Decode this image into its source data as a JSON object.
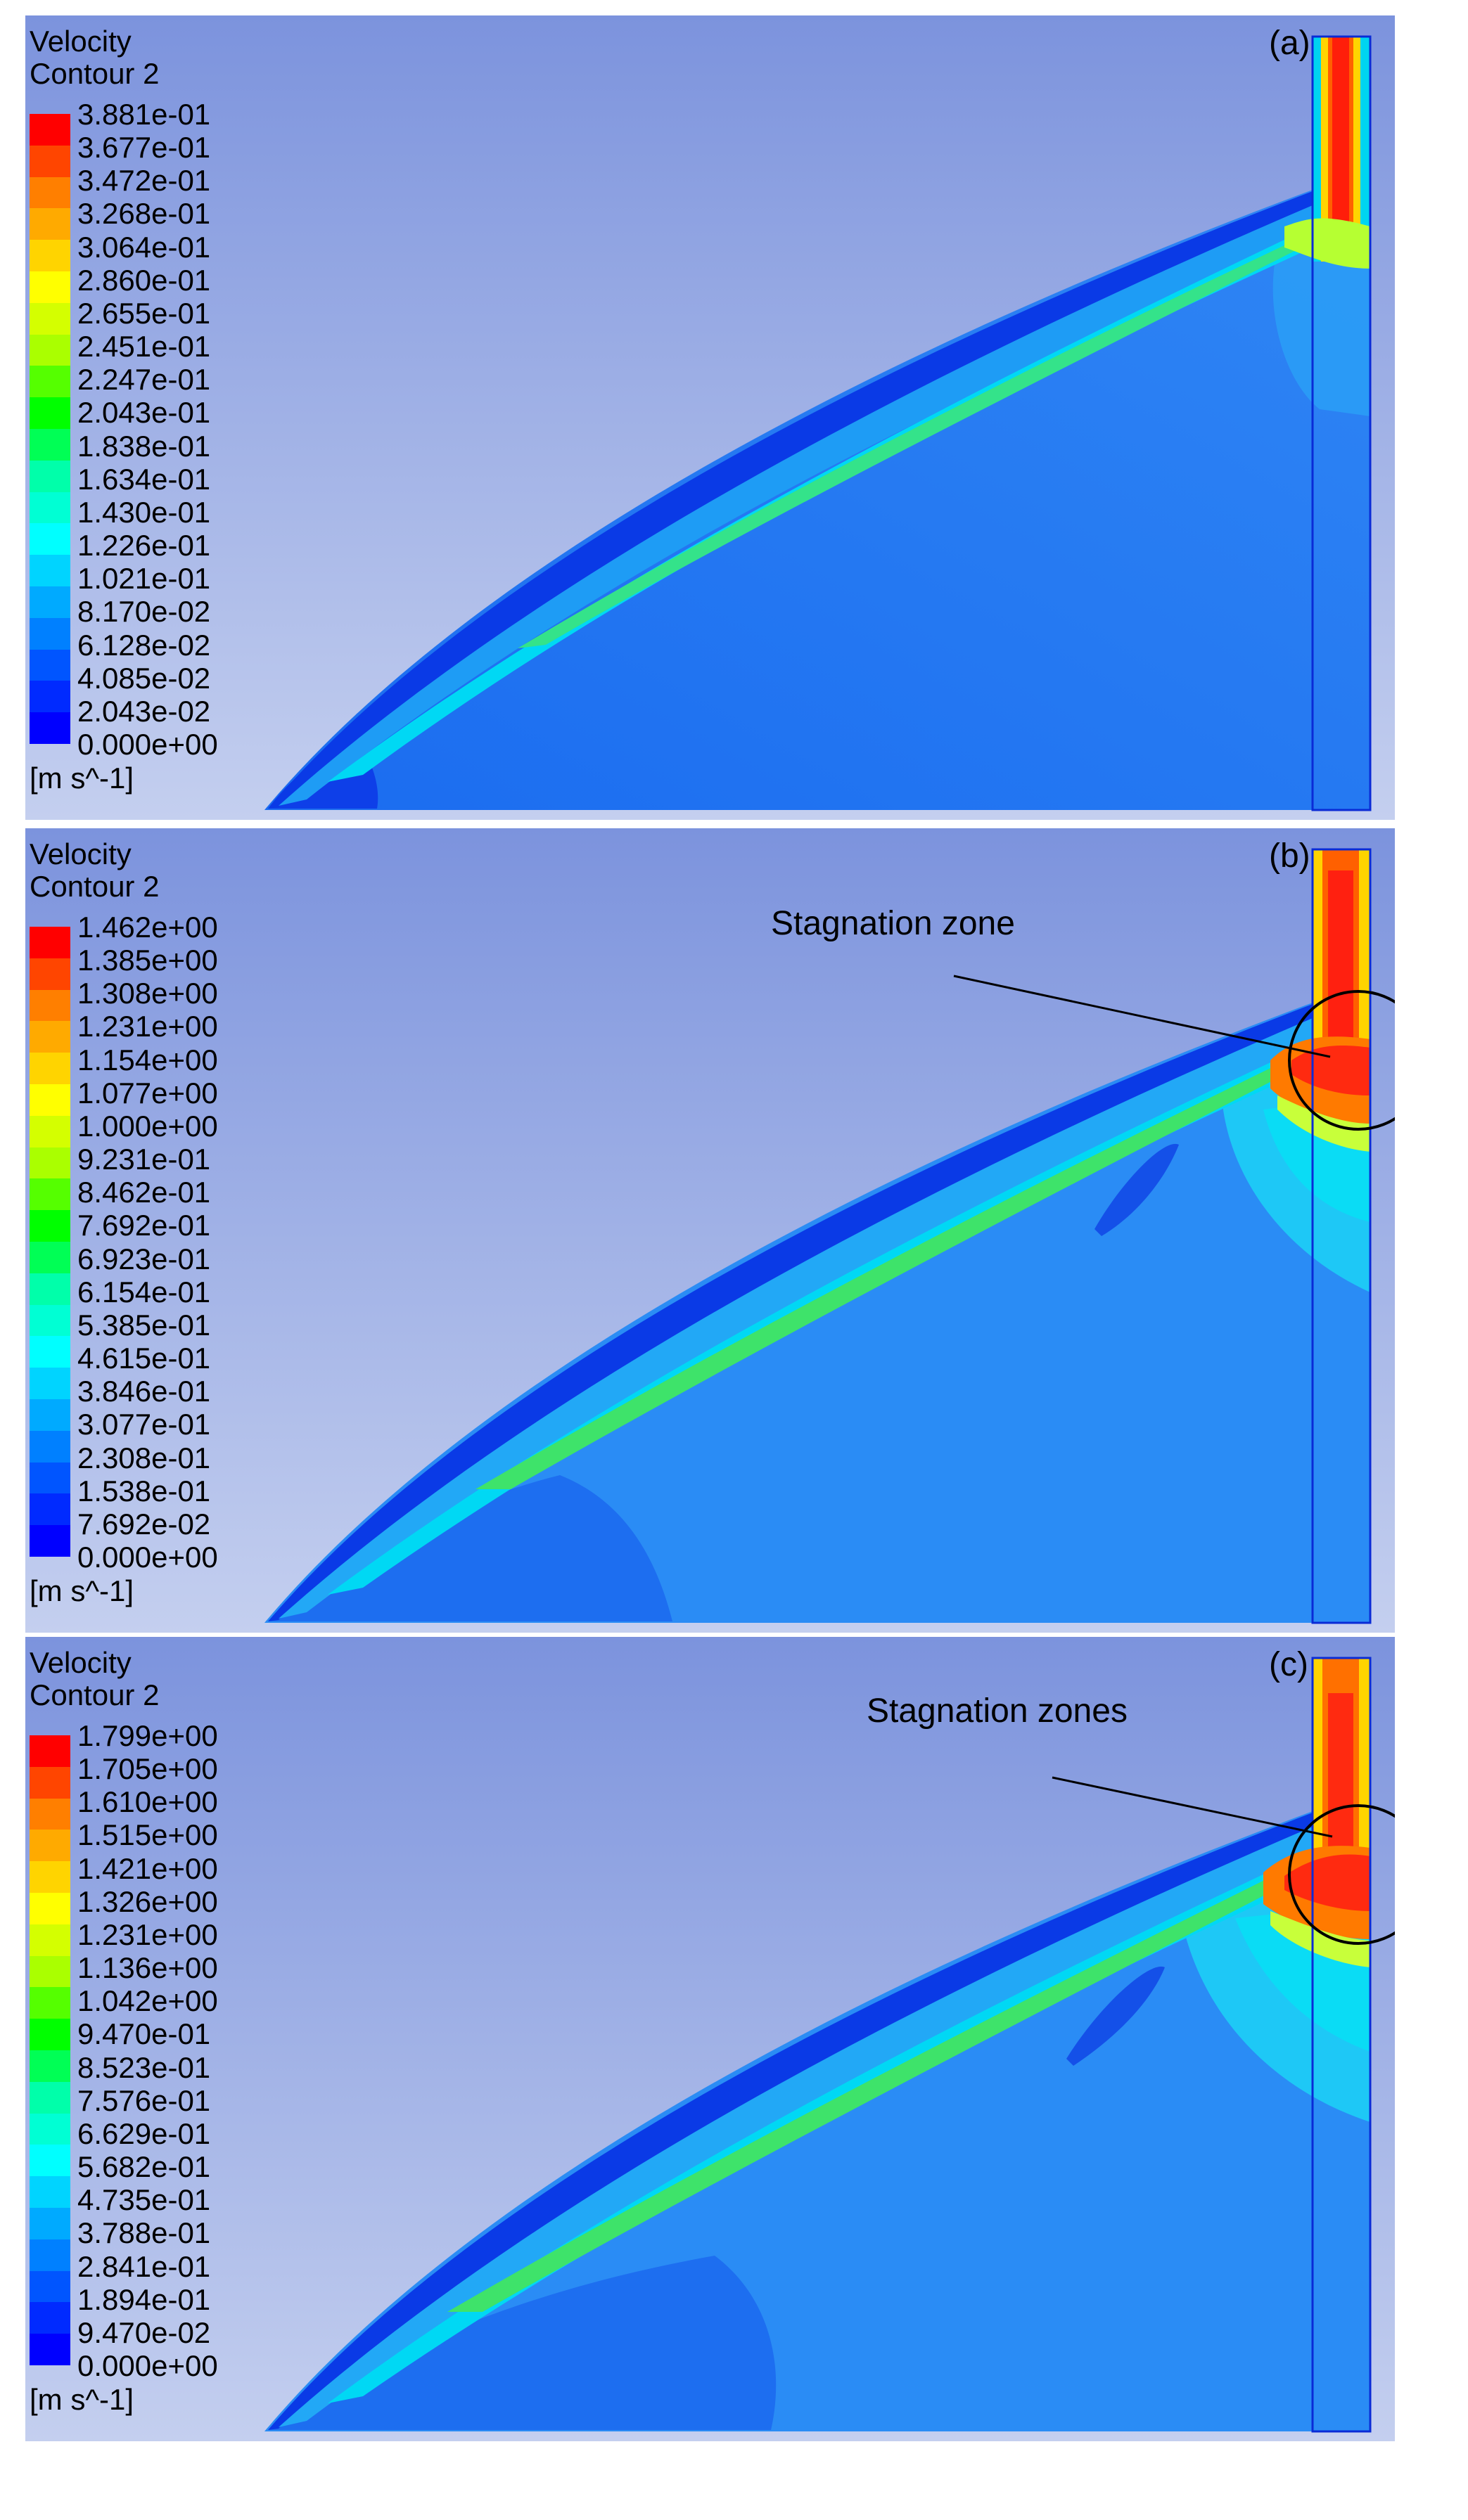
{
  "figure": {
    "panels": [
      {
        "tag": "(a)",
        "header": {
          "line1": "Velocity",
          "line2": "Contour 2"
        },
        "unit": "[m s^-1]",
        "ticks": [
          "3.881e-01",
          "3.677e-01",
          "3.472e-01",
          "3.268e-01",
          "3.064e-01",
          "2.860e-01",
          "2.655e-01",
          "2.451e-01",
          "2.247e-01",
          "2.043e-01",
          "1.838e-01",
          "1.634e-01",
          "1.430e-01",
          "1.226e-01",
          "1.021e-01",
          "8.170e-02",
          "6.128e-02",
          "4.085e-02",
          "2.043e-02",
          "0.000e+00"
        ],
        "callout": ""
      },
      {
        "tag": "(b)",
        "header": {
          "line1": "Velocity",
          "line2": "Contour 2"
        },
        "unit": "[m s^-1]",
        "ticks": [
          "1.462e+00",
          "1.385e+00",
          "1.308e+00",
          "1.231e+00",
          "1.154e+00",
          "1.077e+00",
          "1.000e+00",
          "9.231e-01",
          "8.462e-01",
          "7.692e-01",
          "6.923e-01",
          "6.154e-01",
          "5.385e-01",
          "4.615e-01",
          "3.846e-01",
          "3.077e-01",
          "2.308e-01",
          "1.538e-01",
          "7.692e-02",
          "0.000e+00"
        ],
        "callout": "Stagnation zone"
      },
      {
        "tag": "(c)",
        "header": {
          "line1": "Velocity",
          "line2": "Contour 2"
        },
        "unit": "[m s^-1]",
        "ticks": [
          "1.799e+00",
          "1.705e+00",
          "1.610e+00",
          "1.515e+00",
          "1.421e+00",
          "1.326e+00",
          "1.231e+00",
          "1.136e+00",
          "1.042e+00",
          "9.470e-01",
          "8.523e-01",
          "7.576e-01",
          "6.629e-01",
          "5.682e-01",
          "4.735e-01",
          "3.788e-01",
          "2.841e-01",
          "1.894e-01",
          "9.470e-02",
          "0.000e+00"
        ],
        "callout": "Stagnation zones"
      }
    ],
    "legend_colors": [
      "#ff0000",
      "#ff4500",
      "#ff7f00",
      "#ffaa00",
      "#ffd400",
      "#ffff00",
      "#d4ff00",
      "#aaff00",
      "#55ff00",
      "#00ff00",
      "#00ff55",
      "#00ffaa",
      "#00ffd4",
      "#00ffff",
      "#00d4ff",
      "#00aaff",
      "#0080ff",
      "#0055ff",
      "#002aff",
      "#0000ff"
    ],
    "colors": {
      "bg_top": "#7c93dd",
      "bg_bottom": "#c2cdee",
      "domain_fill": "#1f72f2",
      "dark_blue": "#0d3ce8",
      "jet_green": "#3ee06a",
      "jet_cyan": "#00e0ff",
      "jet_yellow": "#d8ff2a",
      "hot": "#ff3010"
    }
  }
}
